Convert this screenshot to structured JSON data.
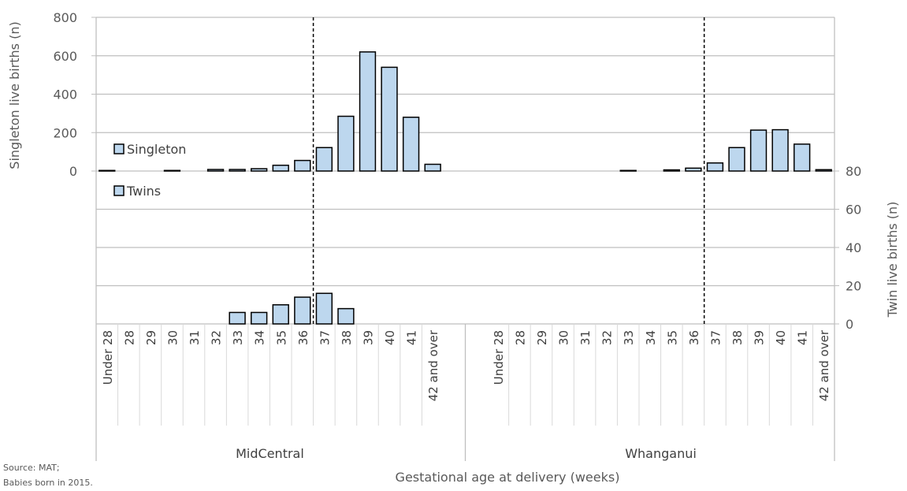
{
  "chart_data": {
    "type": "bar",
    "xlabel": "Gestational age at delivery (weeks)",
    "ylabel_left": "Singleton live births (n)",
    "ylabel_right": "Twin live births (n)",
    "source": "Source: MAT;",
    "note": "Babies born in 2015.",
    "singleton_ylim": [
      0,
      800
    ],
    "singleton_ticks": [
      "0",
      "200",
      "400",
      "600",
      "800"
    ],
    "twin_ylim": [
      0,
      80
    ],
    "twin_ticks": [
      "0",
      "20",
      "40",
      "60",
      "80"
    ],
    "grid": true,
    "legend_position": "left, inside plot",
    "colors": {
      "bar_fill": "#bdd7ee",
      "bar_stroke": "#000000",
      "grid": "#bfbfbf"
    },
    "categories": [
      "Under 28",
      "28",
      "29",
      "30",
      "31",
      "32",
      "33",
      "34",
      "35",
      "36",
      "37",
      "38",
      "39",
      "40",
      "41",
      "42 and over"
    ],
    "groups": [
      {
        "name": "MidCentral",
        "singleton": [
          3,
          0,
          0,
          3,
          0,
          8,
          8,
          12,
          30,
          55,
          122,
          285,
          620,
          540,
          280,
          35
        ],
        "twins": [
          0,
          0,
          0,
          0,
          0,
          0,
          6,
          6,
          10,
          14,
          16,
          8,
          0,
          0,
          0,
          0
        ]
      },
      {
        "name": "Whanganui",
        "singleton": [
          0,
          0,
          0,
          0,
          0,
          0,
          3,
          0,
          6,
          15,
          42,
          122,
          213,
          215,
          140,
          7
        ],
        "twins": [
          0,
          0,
          0,
          0,
          0,
          0,
          0,
          0,
          0,
          0,
          0,
          0,
          0,
          0,
          0,
          0
        ]
      }
    ],
    "series": [
      {
        "name": "Singleton"
      },
      {
        "name": "Twins"
      }
    ]
  }
}
